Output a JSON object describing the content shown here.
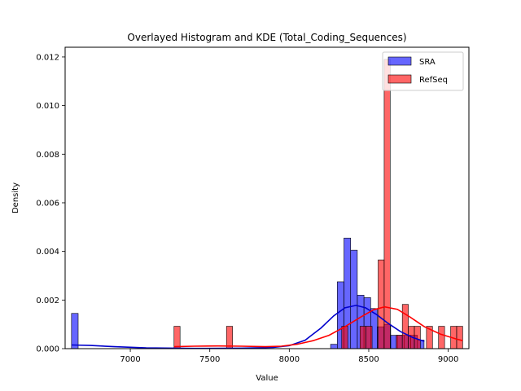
{
  "chart_data": {
    "type": "bar",
    "title": "Overlayed Histogram and KDE (Total_Coding_Sequences)",
    "xlabel": "Value",
    "ylabel": "Density",
    "xlim": [
      6590,
      9130
    ],
    "ylim": [
      0,
      0.0124
    ],
    "xticks": [
      7000,
      7500,
      8000,
      8500,
      9000
    ],
    "yticks": [
      0.0,
      0.002,
      0.004,
      0.006,
      0.008,
      0.01,
      0.012
    ],
    "ytick_labels": [
      "0.000",
      "0.002",
      "0.004",
      "0.006",
      "0.008",
      "0.010",
      "0.012"
    ],
    "grid": false,
    "legend_position": "top-right",
    "series": [
      {
        "name": "SRA",
        "color": "#0000ff",
        "kde_color": "#0000cc",
        "bins": [
          {
            "x0": 6630,
            "x1": 6672,
            "value": 0.00145
          },
          {
            "x0": 8260,
            "x1": 8302,
            "value": 0.00018
          },
          {
            "x0": 8302,
            "x1": 8344,
            "value": 0.00275
          },
          {
            "x0": 8344,
            "x1": 8386,
            "value": 0.00455
          },
          {
            "x0": 8386,
            "x1": 8428,
            "value": 0.00405
          },
          {
            "x0": 8428,
            "x1": 8470,
            "value": 0.0022
          },
          {
            "x0": 8470,
            "x1": 8512,
            "value": 0.0021
          },
          {
            "x0": 8512,
            "x1": 8554,
            "value": 0.00165
          },
          {
            "x0": 8554,
            "x1": 8596,
            "value": 0.0009
          },
          {
            "x0": 8596,
            "x1": 8638,
            "value": 0.001
          },
          {
            "x0": 8638,
            "x1": 8680,
            "value": 0.00055
          },
          {
            "x0": 8680,
            "x1": 8722,
            "value": 0.00055
          },
          {
            "x0": 8722,
            "x1": 8764,
            "value": 0.00055
          },
          {
            "x0": 8764,
            "x1": 8806,
            "value": 0.00055
          },
          {
            "x0": 8806,
            "x1": 8848,
            "value": 0.00035
          }
        ],
        "kde": [
          [
            6630,
            0.00015
          ],
          [
            6750,
            0.00013
          ],
          [
            6900,
            8e-05
          ],
          [
            7100,
            3e-05
          ],
          [
            7400,
            1e-05
          ],
          [
            7700,
            2e-05
          ],
          [
            7900,
            5e-05
          ],
          [
            8000,
            0.00012
          ],
          [
            8100,
            0.00035
          ],
          [
            8200,
            0.00085
          ],
          [
            8280,
            0.00135
          ],
          [
            8350,
            0.00168
          ],
          [
            8420,
            0.00178
          ],
          [
            8480,
            0.00168
          ],
          [
            8550,
            0.0014
          ],
          [
            8620,
            0.00105
          ],
          [
            8700,
            0.0007
          ],
          [
            8780,
            0.00045
          ],
          [
            8850,
            0.0003
          ]
        ]
      },
      {
        "name": "RefSeq",
        "color": "#ff0000",
        "kde_color": "#ff0000",
        "bins": [
          {
            "x0": 7275,
            "x1": 7313,
            "value": 0.00092
          },
          {
            "x0": 7605,
            "x1": 7643,
            "value": 0.00092
          },
          {
            "x0": 8330,
            "x1": 8368,
            "value": 0.00092
          },
          {
            "x0": 8445,
            "x1": 8483,
            "value": 0.00092
          },
          {
            "x0": 8483,
            "x1": 8521,
            "value": 0.00092
          },
          {
            "x0": 8559,
            "x1": 8597,
            "value": 0.00365
          },
          {
            "x0": 8597,
            "x1": 8635,
            "value": 0.0119
          },
          {
            "x0": 8673,
            "x1": 8711,
            "value": 0.00055
          },
          {
            "x0": 8711,
            "x1": 8749,
            "value": 0.00182
          },
          {
            "x0": 8749,
            "x1": 8787,
            "value": 0.00092
          },
          {
            "x0": 8787,
            "x1": 8825,
            "value": 0.00092
          },
          {
            "x0": 8863,
            "x1": 8901,
            "value": 0.00092
          },
          {
            "x0": 8939,
            "x1": 8977,
            "value": 0.00092
          },
          {
            "x0": 9015,
            "x1": 9053,
            "value": 0.00092
          },
          {
            "x0": 9053,
            "x1": 9091,
            "value": 0.00092
          }
        ],
        "kde": [
          [
            7275,
            8e-05
          ],
          [
            7400,
            0.0001
          ],
          [
            7550,
            0.00011
          ],
          [
            7700,
            0.0001
          ],
          [
            7850,
            8e-05
          ],
          [
            7950,
            0.0001
          ],
          [
            8050,
            0.00018
          ],
          [
            8150,
            0.00033
          ],
          [
            8250,
            0.00055
          ],
          [
            8350,
            0.0009
          ],
          [
            8450,
            0.0013
          ],
          [
            8530,
            0.0016
          ],
          [
            8600,
            0.00172
          ],
          [
            8680,
            0.00162
          ],
          [
            8760,
            0.0013
          ],
          [
            8850,
            0.0009
          ],
          [
            8950,
            0.0006
          ],
          [
            9050,
            0.0004
          ],
          [
            9091,
            0.00033
          ]
        ]
      }
    ]
  }
}
